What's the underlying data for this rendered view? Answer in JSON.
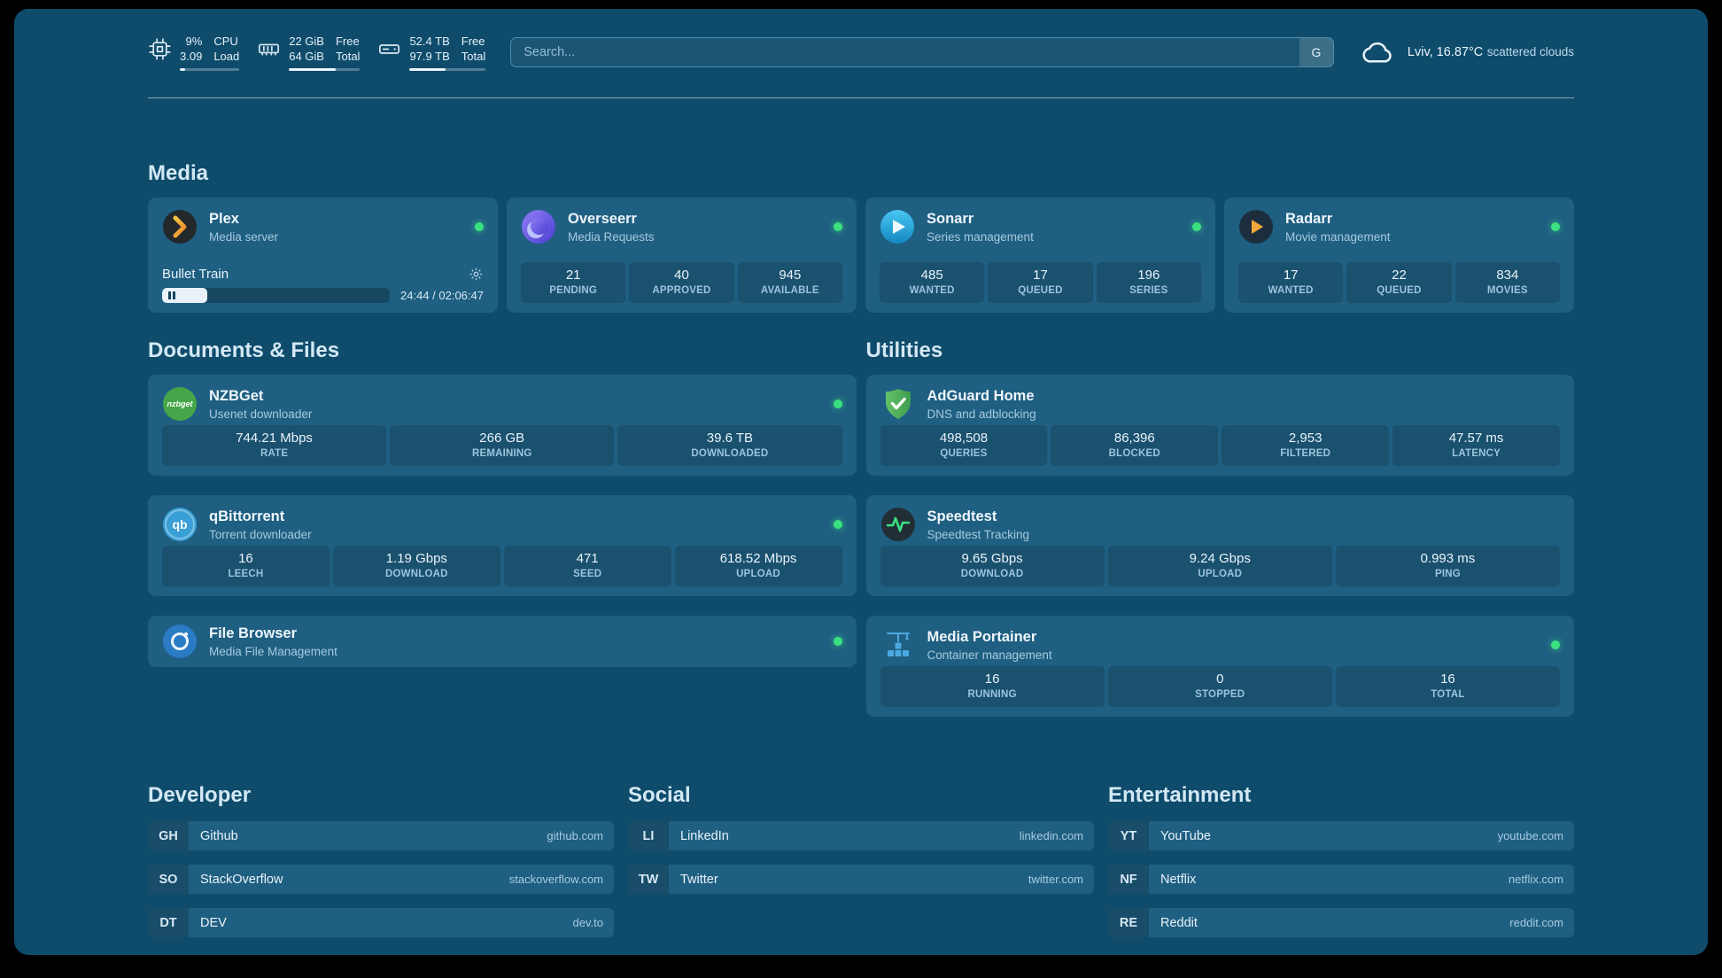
{
  "header": {
    "cpu": {
      "top_value": "9%",
      "top_label": "CPU",
      "bottom_value": "3.09",
      "bottom_label": "Load",
      "bar_percent": 9
    },
    "memory": {
      "top_value": "22 GiB",
      "top_label": "Free",
      "bottom_value": "64 GiB",
      "bottom_label": "Total",
      "bar_percent": 66
    },
    "disk": {
      "top_value": "52.4 TB",
      "top_label": "Free",
      "bottom_value": "97.9 TB",
      "bottom_label": "Total",
      "bar_percent": 47
    },
    "search": {
      "placeholder": "Search...",
      "provider_button": "G"
    },
    "weather": {
      "location": "Lviv, 16.87°C",
      "condition": "scattered clouds"
    }
  },
  "media": {
    "title": "Media",
    "services": [
      {
        "name": "Plex",
        "description": "Media server",
        "online": true,
        "player": {
          "title": "Bullet Train",
          "time": "24:44 / 02:06:47",
          "progress_percent": 20
        }
      },
      {
        "name": "Overseerr",
        "description": "Media Requests",
        "online": true,
        "stats": [
          {
            "value": "21",
            "label": "PENDING"
          },
          {
            "value": "40",
            "label": "APPROVED"
          },
          {
            "value": "945",
            "label": "AVAILABLE"
          }
        ]
      },
      {
        "name": "Sonarr",
        "description": "Series management",
        "online": true,
        "stats": [
          {
            "value": "485",
            "label": "WANTED"
          },
          {
            "value": "17",
            "label": "QUEUED"
          },
          {
            "value": "196",
            "label": "SERIES"
          }
        ]
      },
      {
        "name": "Radarr",
        "description": "Movie management",
        "online": true,
        "stats": [
          {
            "value": "17",
            "label": "WANTED"
          },
          {
            "value": "22",
            "label": "QUEUED"
          },
          {
            "value": "834",
            "label": "MOVIES"
          }
        ]
      }
    ]
  },
  "documents": {
    "title": "Documents & Files",
    "services": [
      {
        "name": "NZBGet",
        "description": "Usenet downloader",
        "online": true,
        "icon_text": "nzbget",
        "stats": [
          {
            "value": "744.21 Mbps",
            "label": "RATE"
          },
          {
            "value": "266 GB",
            "label": "REMAINING"
          },
          {
            "value": "39.6 TB",
            "label": "DOWNLOADED"
          }
        ]
      },
      {
        "name": "qBittorrent",
        "description": "Torrent downloader",
        "online": true,
        "icon_text": "qb",
        "stats": [
          {
            "value": "16",
            "label": "LEECH"
          },
          {
            "value": "1.19 Gbps",
            "label": "DOWNLOAD"
          },
          {
            "value": "471",
            "label": "SEED"
          },
          {
            "value": "618.52 Mbps",
            "label": "UPLOAD"
          }
        ]
      },
      {
        "name": "File Browser",
        "description": "Media File Management",
        "online": true
      }
    ]
  },
  "utilities": {
    "title": "Utilities",
    "services": [
      {
        "name": "AdGuard Home",
        "description": "DNS and adblocking",
        "online": false,
        "stats": [
          {
            "value": "498,508",
            "label": "QUERIES"
          },
          {
            "value": "86,396",
            "label": "BLOCKED"
          },
          {
            "value": "2,953",
            "label": "FILTERED"
          },
          {
            "value": "47.57 ms",
            "label": "LATENCY"
          }
        ]
      },
      {
        "name": "Speedtest",
        "description": "Speedtest Tracking",
        "online": false,
        "stats": [
          {
            "value": "9.65 Gbps",
            "label": "DOWNLOAD"
          },
          {
            "value": "9.24 Gbps",
            "label": "UPLOAD"
          },
          {
            "value": "0.993 ms",
            "label": "PING"
          }
        ]
      },
      {
        "name": "Media Portainer",
        "description": "Container management",
        "online": true,
        "stats": [
          {
            "value": "16",
            "label": "RUNNING"
          },
          {
            "value": "0",
            "label": "STOPPED"
          },
          {
            "value": "16",
            "label": "TOTAL"
          }
        ]
      }
    ]
  },
  "bookmarks": {
    "groups": [
      {
        "title": "Developer",
        "items": [
          {
            "abbr": "GH",
            "name": "Github",
            "domain": "github.com"
          },
          {
            "abbr": "SO",
            "name": "StackOverflow",
            "domain": "stackoverflow.com"
          },
          {
            "abbr": "DT",
            "name": "DEV",
            "domain": "dev.to"
          }
        ]
      },
      {
        "title": "Social",
        "items": [
          {
            "abbr": "LI",
            "name": "LinkedIn",
            "domain": "linkedin.com"
          },
          {
            "abbr": "TW",
            "name": "Twitter",
            "domain": "twitter.com"
          }
        ]
      },
      {
        "title": "Entertainment",
        "items": [
          {
            "abbr": "YT",
            "name": "YouTube",
            "domain": "youtube.com"
          },
          {
            "abbr": "NF",
            "name": "Netflix",
            "domain": "netflix.com"
          },
          {
            "abbr": "RE",
            "name": "Reddit",
            "domain": "reddit.com"
          }
        ]
      }
    ]
  },
  "colors": {
    "status_online": "#3be180"
  }
}
